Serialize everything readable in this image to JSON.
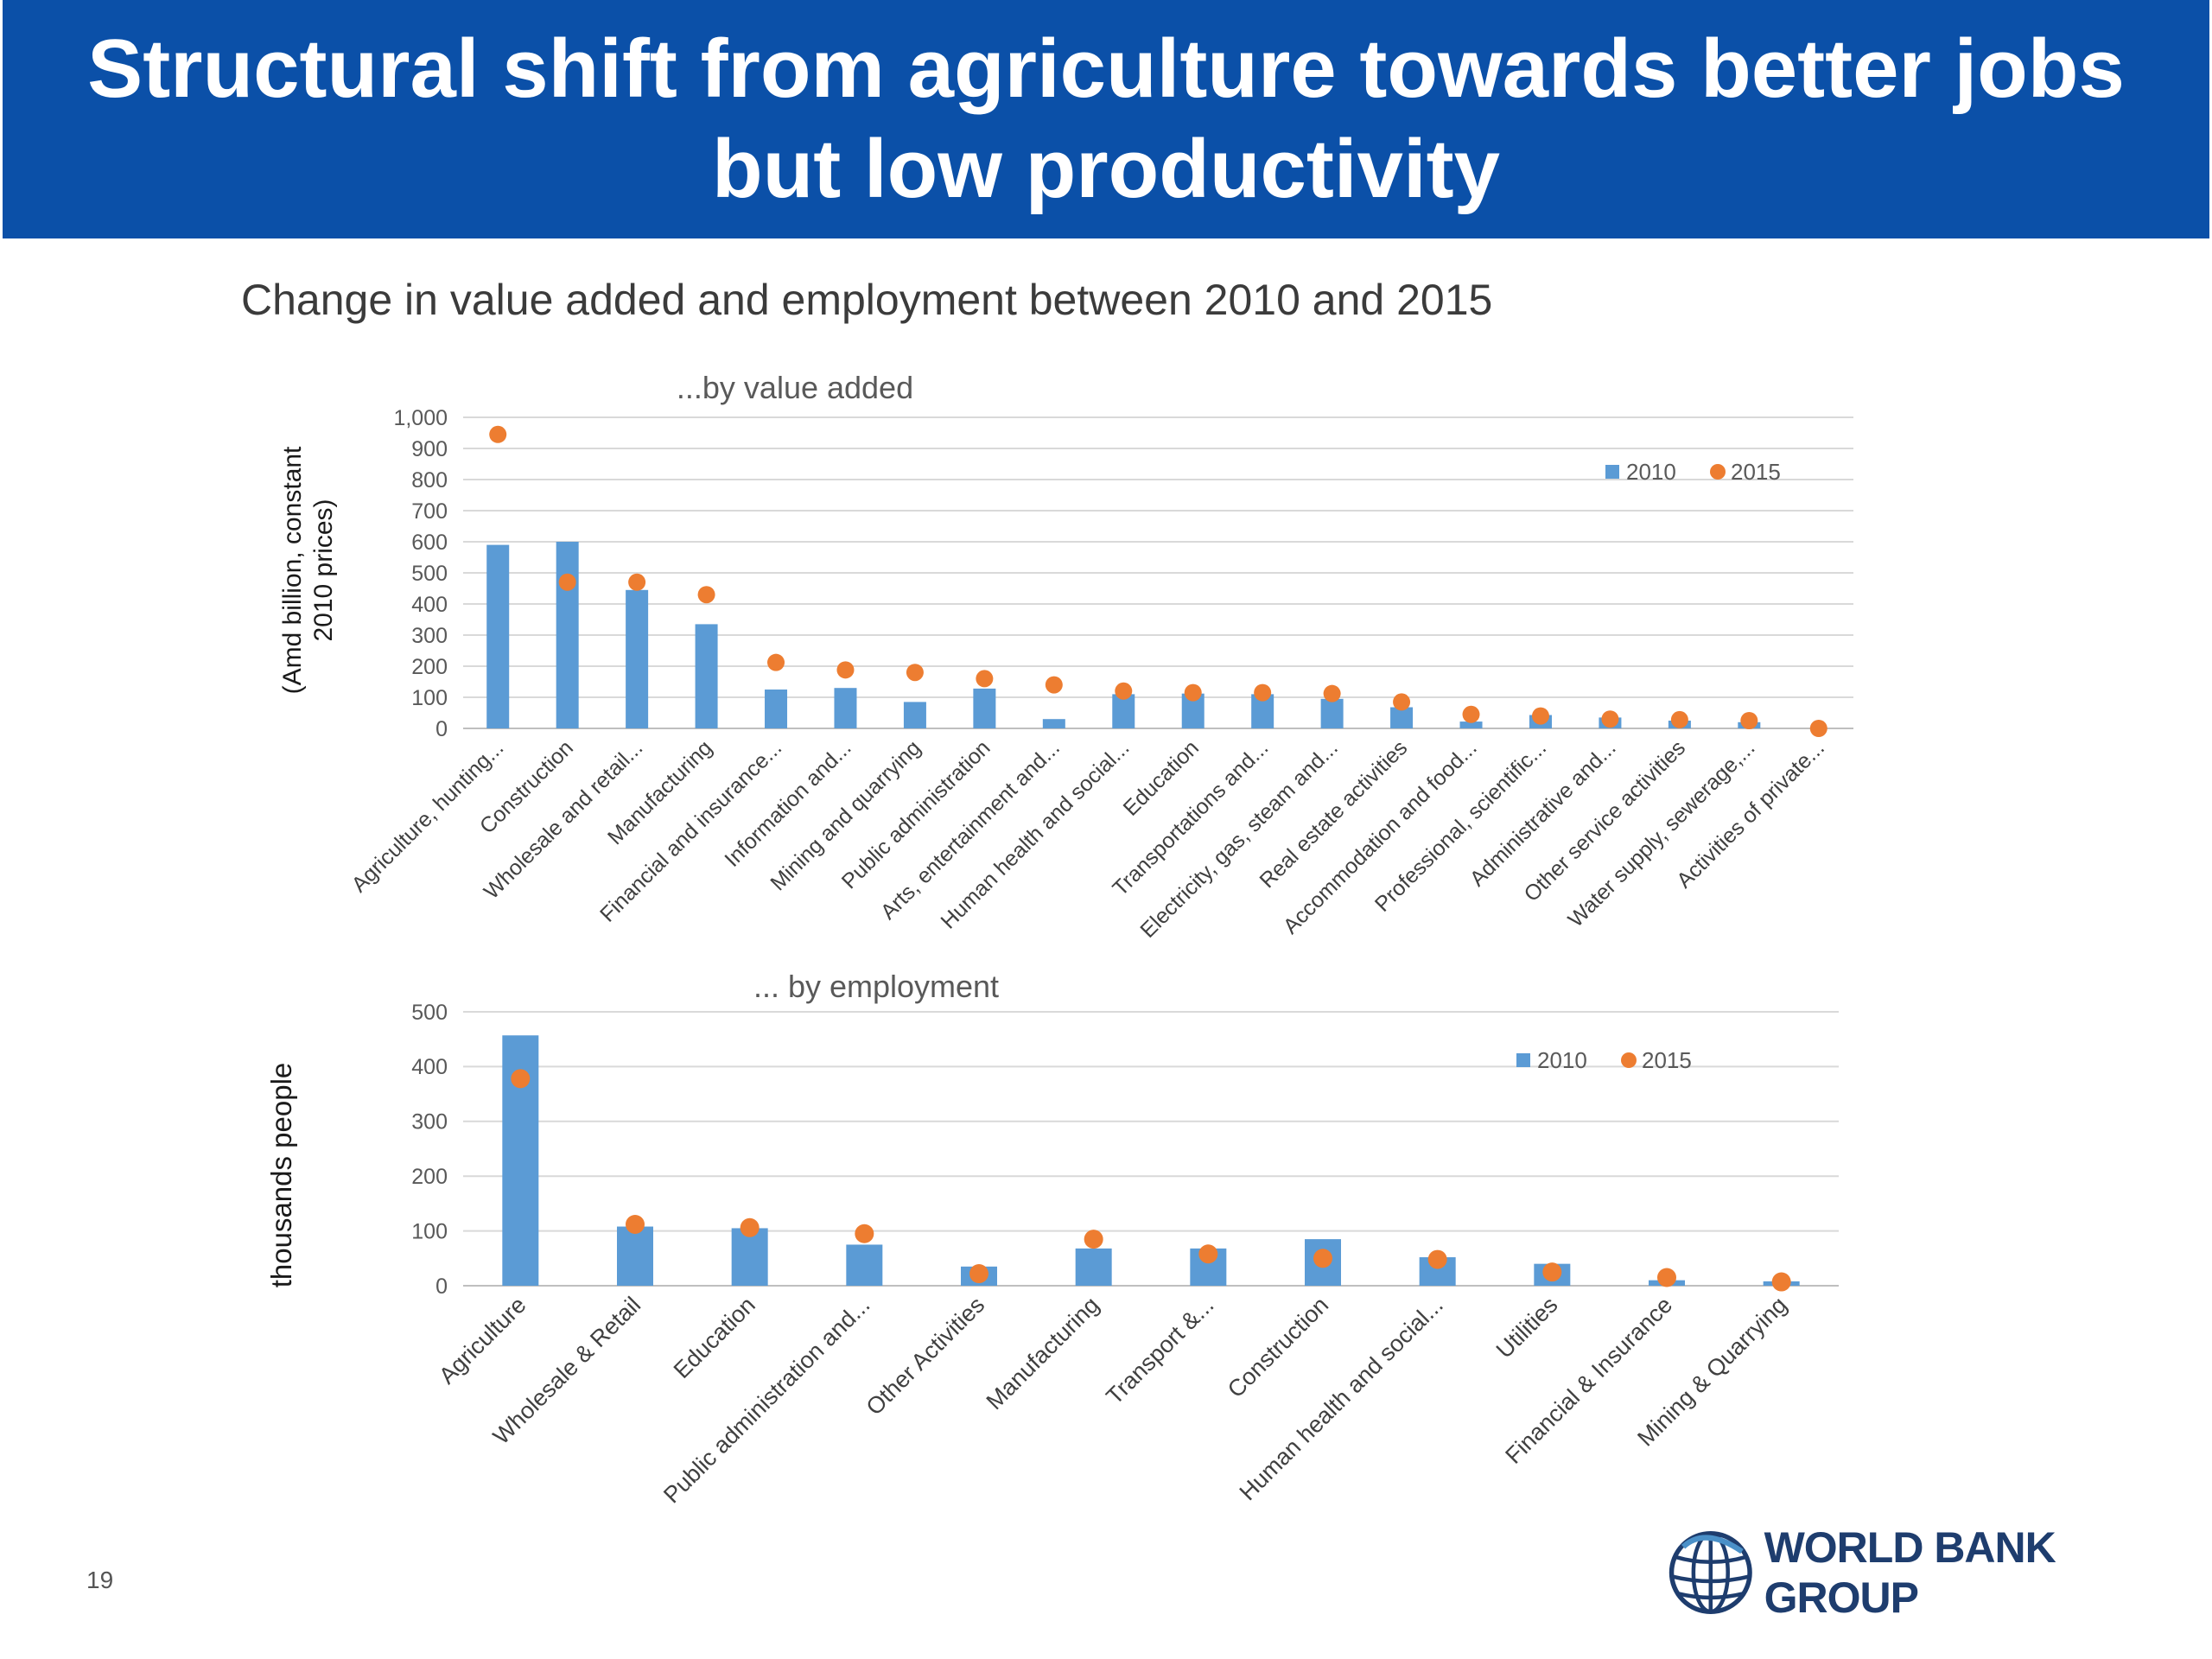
{
  "header": {
    "title_line1": "Structural shift from agriculture towards better jobs",
    "title_line2": "but low productivity"
  },
  "subtitle": "Change in value added and employment between 2010 and 2015",
  "page_number": "19",
  "logo": {
    "text": "WORLD BANK GROUP",
    "icon": "globe-icon"
  },
  "colors": {
    "header_bg": "#0b50a8",
    "bar_2010": "#5b9bd5",
    "dot_2015": "#ed7d31",
    "grid": "#d9d9d9"
  },
  "chart_data": [
    {
      "type": "bar",
      "title": "...by value added",
      "ylabel": "(Amd billion, constant 2010 prices)",
      "xlabel": "",
      "ylim": [
        0,
        1000
      ],
      "yticks": [
        0,
        100,
        200,
        300,
        400,
        500,
        600,
        700,
        800,
        900,
        1000
      ],
      "ytick_labels": [
        "0",
        "100",
        "200",
        "300",
        "400",
        "500",
        "600",
        "700",
        "800",
        "900",
        "1,000"
      ],
      "grid": true,
      "legend_position": "top-right",
      "categories": [
        "Agriculture, hunting...",
        "Construction",
        "Wholesale and retail...",
        "Manufacturing",
        "Financial and insurance...",
        "Information and...",
        "Mining and quarrying",
        "Public administration",
        "Arts, entertainment and...",
        "Human health and social...",
        "Education",
        "Transportations and...",
        "Electricity, gas, steam and...",
        "Real estate activities",
        "Accommodation and food...",
        "Professional, scientific...",
        "Administrative and...",
        "Other service activities",
        "Water supply, sewerage,...",
        "Activities of private..."
      ],
      "series": [
        {
          "name": "2010",
          "marker": "bar",
          "values": [
            590,
            600,
            445,
            335,
            125,
            130,
            85,
            128,
            30,
            110,
            112,
            110,
            95,
            68,
            22,
            43,
            35,
            25,
            20,
            0
          ]
        },
        {
          "name": "2015",
          "marker": "dot",
          "values": [
            945,
            470,
            470,
            430,
            212,
            188,
            180,
            160,
            140,
            120,
            115,
            115,
            112,
            85,
            45,
            40,
            30,
            28,
            25,
            0
          ]
        }
      ]
    },
    {
      "type": "bar",
      "title": "... by employment",
      "ylabel": "thousands people",
      "xlabel": "",
      "ylim": [
        0,
        500
      ],
      "yticks": [
        0,
        100,
        200,
        300,
        400,
        500
      ],
      "ytick_labels": [
        "0",
        "100",
        "200",
        "300",
        "400",
        "500"
      ],
      "grid": true,
      "legend_position": "top-right",
      "categories": [
        "Agriculture",
        "Wholesale & Retail",
        "Education",
        "Public administration and...",
        "Other Activities",
        "Manufacturing",
        "Transport &...",
        "Construction",
        "Human health and social...",
        "Utilities",
        "Financial & Insurance",
        "Mining & Quarrying"
      ],
      "series": [
        {
          "name": "2010",
          "marker": "bar",
          "values": [
            457,
            108,
            105,
            75,
            35,
            68,
            68,
            85,
            52,
            40,
            10,
            8
          ]
        },
        {
          "name": "2015",
          "marker": "dot",
          "values": [
            378,
            112,
            106,
            95,
            22,
            85,
            58,
            50,
            48,
            25,
            15,
            7
          ]
        }
      ]
    }
  ]
}
